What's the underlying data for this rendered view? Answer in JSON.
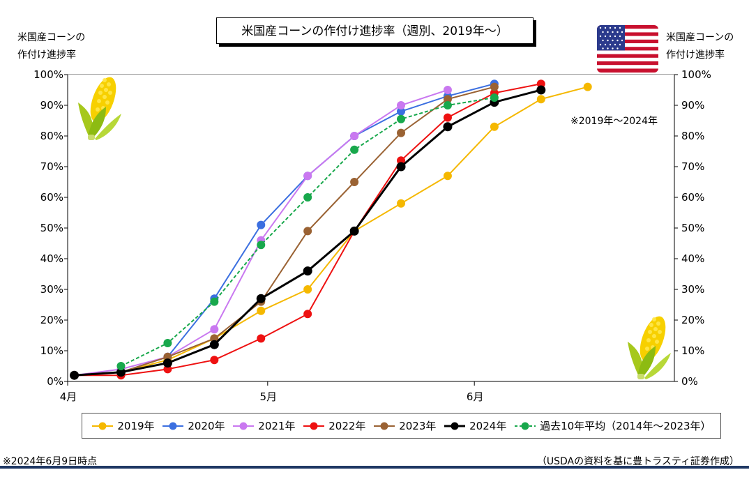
{
  "title": "米国産コーンの作付け進捗率（週別、2019年～）",
  "left_axis_title": [
    "米国産コーンの",
    "作付け進捗率"
  ],
  "right_axis_title": [
    "米国産コーンの",
    "作付け進捗率"
  ],
  "range_note": "※2019年～2024年",
  "footnote": "※2024年6月9日時点",
  "source": "（USDAの資料を基に豊トラスティ証券作成）",
  "icons": [
    "corn-icon",
    "us-flag-icon"
  ],
  "chart_data": {
    "type": "line",
    "x_ticks": [
      {
        "label": "4月",
        "day": 0
      },
      {
        "label": "5月",
        "day": 30
      },
      {
        "label": "6月",
        "day": 61
      }
    ],
    "xlim": [
      0,
      91
    ],
    "ylim": [
      0,
      100
    ],
    "y_ticks": [
      0,
      10,
      20,
      30,
      40,
      50,
      60,
      70,
      80,
      90,
      100
    ],
    "y_tick_labels": [
      "0%",
      "10%",
      "20%",
      "30%",
      "40%",
      "50%",
      "60%",
      "70%",
      "80%",
      "90%",
      "100%"
    ],
    "grid": true,
    "legend_position": "bottom",
    "series": [
      {
        "name": "2019年",
        "color": "#f5b800",
        "dashed": false,
        "bold": false,
        "x": [
          1,
          8,
          15,
          22,
          29,
          36,
          43,
          50,
          57,
          64,
          71,
          78
        ],
        "values": [
          2,
          3,
          7,
          14,
          23,
          30,
          49,
          58,
          67,
          83,
          92,
          96
        ]
      },
      {
        "name": "2020年",
        "color": "#3b6fe0",
        "dashed": false,
        "bold": false,
        "x": [
          1,
          8,
          15,
          22,
          29,
          36,
          43,
          50,
          57,
          64
        ],
        "values": [
          2,
          3,
          8,
          27,
          51,
          67,
          80,
          88,
          93,
          97
        ]
      },
      {
        "name": "2021年",
        "color": "#c978f0",
        "dashed": false,
        "bold": false,
        "x": [
          1,
          8,
          15,
          22,
          29,
          36,
          43,
          50,
          57
        ],
        "values": [
          2,
          4,
          8,
          17,
          46,
          67,
          80,
          90,
          95
        ]
      },
      {
        "name": "2022年",
        "color": "#ee1111",
        "dashed": false,
        "bold": false,
        "x": [
          1,
          8,
          15,
          22,
          29,
          36,
          43,
          50,
          57,
          64,
          71
        ],
        "values": [
          2,
          2,
          4,
          7,
          14,
          22,
          49,
          72,
          86,
          94,
          97
        ]
      },
      {
        "name": "2023年",
        "color": "#9a6233",
        "dashed": false,
        "bold": false,
        "x": [
          1,
          8,
          15,
          22,
          29,
          36,
          43,
          50,
          57,
          64
        ],
        "values": [
          2,
          3,
          8,
          14,
          26,
          49,
          65,
          81,
          92,
          96
        ]
      },
      {
        "name": "2024年",
        "color": "#000000",
        "dashed": false,
        "bold": true,
        "x": [
          1,
          8,
          15,
          22,
          29,
          36,
          43,
          50,
          57,
          64,
          71
        ],
        "values": [
          2,
          3,
          6,
          12,
          27,
          36,
          49,
          70,
          83,
          91,
          95
        ]
      },
      {
        "name": "過去10年平均（2014年～2023年）",
        "color": "#18a84c",
        "dashed": true,
        "bold": false,
        "x": [
          8,
          15,
          22,
          29,
          36,
          43,
          50,
          57,
          64
        ],
        "values": [
          5,
          12.5,
          26,
          44.5,
          60,
          75.5,
          85.5,
          90,
          92.5
        ]
      }
    ]
  }
}
